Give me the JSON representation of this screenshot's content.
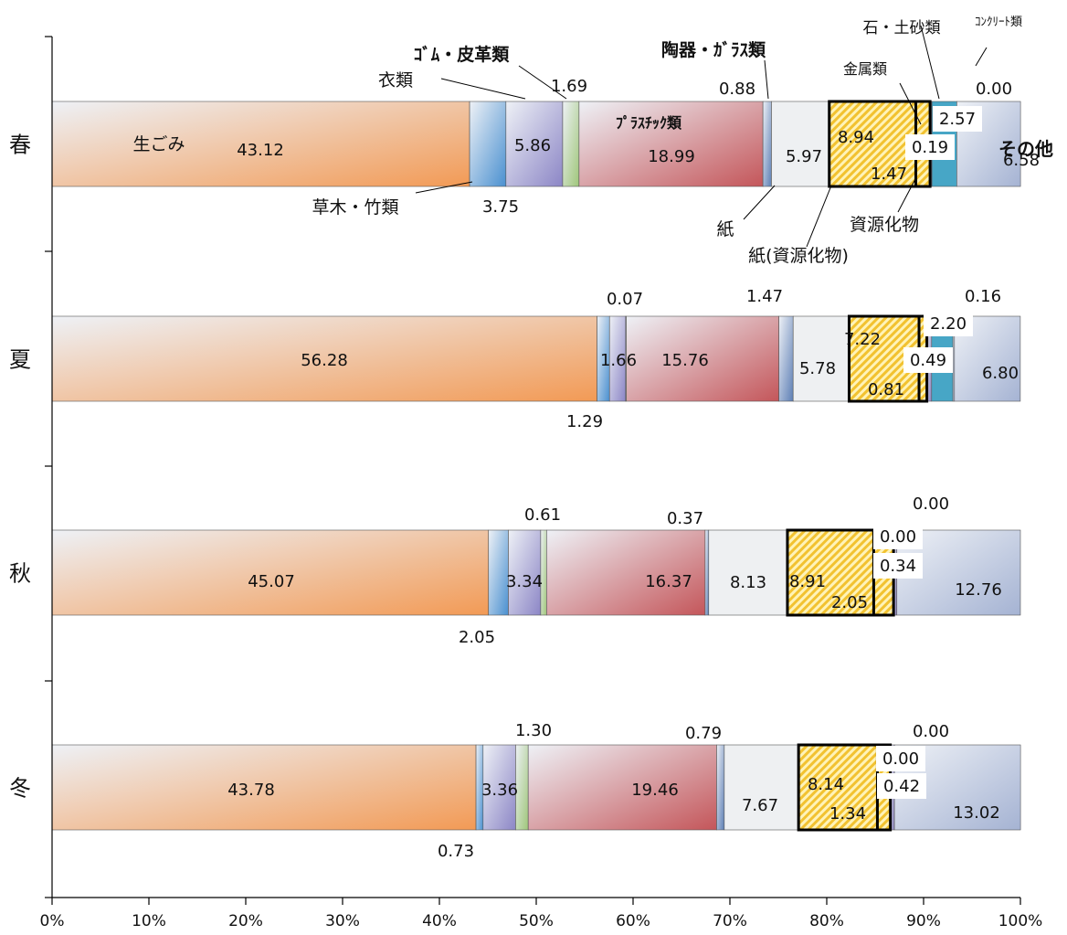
{
  "chart_data": {
    "type": "bar",
    "orientation": "horizontal",
    "stacked": "percent",
    "xlim": [
      0,
      100
    ],
    "x_ticks": [
      "0%",
      "10%",
      "20%",
      "30%",
      "40%",
      "50%",
      "60%",
      "70%",
      "80%",
      "90%",
      "100%"
    ],
    "grid": false,
    "legend": "none",
    "categories": [
      "春",
      "夏",
      "秋",
      "冬"
    ],
    "series": [
      {
        "name": "生ごみ",
        "color": "#f29a55",
        "values": [
          43.12,
          56.28,
          45.07,
          43.78
        ]
      },
      {
        "name": "草木・竹類",
        "color": "#4a90d0",
        "values": [
          3.75,
          1.29,
          2.05,
          0.73
        ]
      },
      {
        "name": "衣類",
        "color": "#8c86c6",
        "values": [
          5.86,
          1.66,
          3.34,
          3.36
        ]
      },
      {
        "name": "ｺﾞﾑ・皮革類",
        "color": "#9fc67a",
        "values": [
          1.69,
          0.07,
          0.61,
          1.3
        ]
      },
      {
        "name": "ﾌﾟﾗｽﾁｯｸ類",
        "color": "#c4565a",
        "values": [
          18.99,
          15.76,
          16.37,
          19.46
        ]
      },
      {
        "name": "陶器・ｶﾞﾗｽ類",
        "color": "#5d7fb5",
        "values": [
          0.88,
          1.47,
          0.37,
          0.79
        ]
      },
      {
        "name": "紙",
        "color": "#eef0f2",
        "values": [
          5.97,
          5.78,
          8.13,
          7.67
        ]
      },
      {
        "name": "紙(資源化物)",
        "color": "#f5d24a",
        "values": [
          8.94,
          7.22,
          8.91,
          8.14
        ]
      },
      {
        "name": "資源化物",
        "color": "#f5d24a",
        "values": [
          1.47,
          0.81,
          2.05,
          1.34
        ]
      },
      {
        "name": "金属類",
        "color": "#8a82c0",
        "values": [
          0.19,
          0.49,
          0.34,
          0.42
        ]
      },
      {
        "name": "石・土砂類",
        "color": "#47a6c6",
        "values": [
          2.57,
          2.2,
          0.0,
          0.0
        ]
      },
      {
        "name": "ｺﾝｸﾘｰﾄ類",
        "color": "#a5b3d3",
        "values": [
          0.0,
          0.16,
          0.0,
          0.0
        ]
      },
      {
        "name": "その他",
        "color": "#a5b3d3",
        "values": [
          6.58,
          6.8,
          12.76,
          13.02
        ]
      }
    ],
    "value_labels": [
      [
        "43.12",
        "3.75",
        "5.86",
        "1.69",
        "18.99",
        "0.88",
        "5.97",
        "8.94",
        "1.47",
        "0.19",
        "2.57",
        "0.00",
        "6.58"
      ],
      [
        "56.28",
        "1.29",
        "1.66",
        "0.07",
        "15.76",
        "1.47",
        "5.78",
        "7.22",
        "0.81",
        "0.49",
        "2.20",
        "0.16",
        "6.80"
      ],
      [
        "45.07",
        "2.05",
        "3.34",
        "0.61",
        "16.37",
        "0.37",
        "8.13",
        "8.91",
        "2.05",
        "0.34",
        "0.00",
        "0.00",
        "12.76"
      ],
      [
        "43.78",
        "0.73",
        "3.36",
        "1.30",
        "19.46",
        "0.79",
        "7.67",
        "8.14",
        "1.34",
        "0.42",
        "0.00",
        "0.00",
        "13.02"
      ]
    ],
    "annotations": [
      "生ごみ",
      "草木・竹類",
      "衣類",
      "ｺﾞﾑ・皮革類",
      "ﾌﾟﾗｽﾁｯｸ類",
      "陶器・ｶﾞﾗｽ類",
      "紙",
      "紙(資源化物)",
      "資源化物",
      "金属類",
      "石・土砂類",
      "ｺﾝｸﾘｰﾄ類",
      "その他"
    ]
  }
}
